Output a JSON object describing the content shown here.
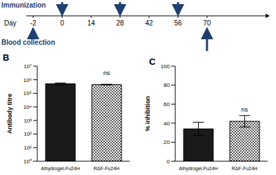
{
  "timeline": {
    "top_label": "Immunization",
    "axis_label": "Day",
    "bottom_label": "Blood collection",
    "days": [
      -2,
      0,
      14,
      28,
      42,
      56,
      70
    ],
    "immunization_days": [
      0,
      28,
      56
    ],
    "blood_collection_days": [
      -2,
      70
    ]
  },
  "chart_data": [
    {
      "type": "bar",
      "panel": "B",
      "y_label": "Antibody titre",
      "categories": [
        "Alhydrogel-Fu24H",
        "RΔF-Fu24H"
      ],
      "values": [
        500000,
        440000
      ],
      "errors": [
        80000,
        30000
      ],
      "colors": [
        "#1a1a1a",
        "#555555"
      ],
      "log": "y",
      "ylim": [
        1,
        10000000
      ],
      "yticks": [
        {
          "value": 1,
          "label": "10⁰"
        },
        {
          "value": 10,
          "label": "10¹"
        },
        {
          "value": 100,
          "label": "10²"
        },
        {
          "value": 1000,
          "label": "10³"
        },
        {
          "value": 10000,
          "label": "10⁴"
        },
        {
          "value": 100000,
          "label": "10⁵"
        },
        {
          "value": 1000000,
          "label": "10⁶"
        },
        {
          "value": 10000000,
          "label": "10⁷"
        }
      ],
      "grid": false,
      "annotations": [
        {
          "category": "RΔF-Fu24H",
          "text": "ns"
        }
      ]
    },
    {
      "type": "bar",
      "panel": "C",
      "y_label": "% inhibition",
      "categories": [
        "Alhydrogel-Fu24H",
        "RΔF-Fu24H"
      ],
      "values": [
        34,
        42
      ],
      "errors": [
        7,
        6
      ],
      "colors": [
        "#1a1a1a",
        "#555555"
      ],
      "ylim": [
        0,
        100
      ],
      "yticks": [
        0,
        20,
        40,
        60,
        80,
        100
      ],
      "grid": false,
      "annotations": [
        {
          "category": "RΔF-Fu24H",
          "text": "ns"
        }
      ]
    }
  ]
}
